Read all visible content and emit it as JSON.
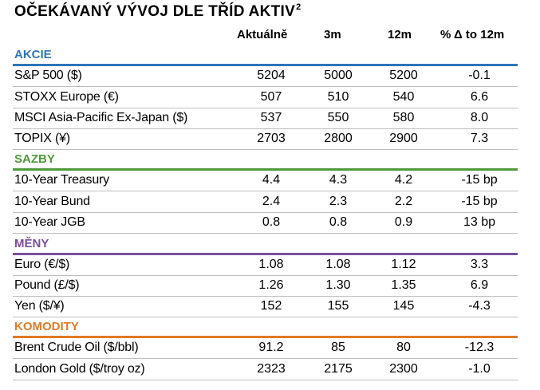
{
  "title": "OČEKÁVANÝ VÝVOJ DLE TŘÍD AKTIV",
  "title_sup": "2",
  "columns": [
    "Aktuálně",
    "3m",
    "12m",
    "% Δ to 12m"
  ],
  "sections": [
    {
      "label": "AKCIE",
      "color": "#2e75b6",
      "rows": [
        {
          "name": "S&P 500 ($)",
          "values": [
            "5204",
            "5000",
            "5200",
            "-0.1"
          ]
        },
        {
          "name": "STOXX Europe (€)",
          "values": [
            "507",
            "510",
            "540",
            "6.6"
          ]
        },
        {
          "name": "MSCI Asia-Pacific Ex-Japan ($)",
          "values": [
            "537",
            "550",
            "580",
            "8.0"
          ]
        },
        {
          "name": "TOPIX (¥)",
          "values": [
            "2703",
            "2800",
            "2900",
            "7.3"
          ]
        }
      ]
    },
    {
      "label": "SAZBY",
      "color": "#4e9a3a",
      "rows": [
        {
          "name": "10-Year Treasury",
          "values": [
            "4.4",
            "4.3",
            "4.2",
            "-15 bp"
          ]
        },
        {
          "name": "10-Year Bund",
          "values": [
            "2.4",
            "2.3",
            "2.2",
            "-15 bp"
          ]
        },
        {
          "name": "10-Year JGB",
          "values": [
            "0.8",
            "0.8",
            "0.9",
            "13 bp"
          ]
        }
      ]
    },
    {
      "label": "MĚNY",
      "color": "#7a4f9a",
      "rows": [
        {
          "name": "Euro (€/$)",
          "values": [
            "1.08",
            "1.08",
            "1.12",
            "3.3"
          ]
        },
        {
          "name": "Pound (£/$)",
          "values": [
            "1.26",
            "1.30",
            "1.35",
            "6.9"
          ]
        },
        {
          "name": "Yen ($/¥)",
          "values": [
            "152",
            "155",
            "145",
            "-4.3"
          ]
        }
      ]
    },
    {
      "label": "KOMODITY",
      "color": "#e07a26",
      "rows": [
        {
          "name": "Brent Crude Oil ($/bbl)",
          "values": [
            "91.2",
            "85",
            "80",
            "-12.3"
          ]
        },
        {
          "name": "London Gold ($/troy oz)",
          "values": [
            "2323",
            "2175",
            "2300",
            "-1.0"
          ]
        }
      ]
    }
  ]
}
